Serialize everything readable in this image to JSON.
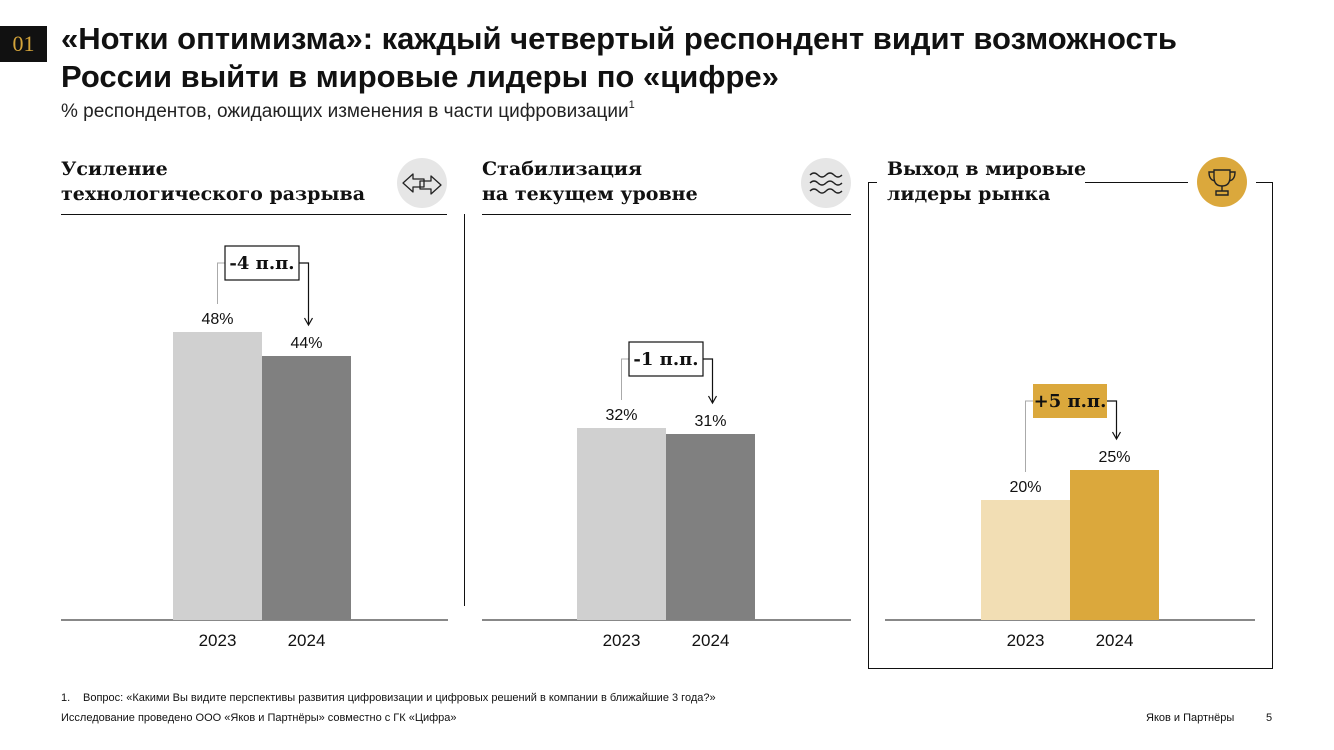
{
  "slide": {
    "badge": "01",
    "title": "«Нотки оптимизма»: каждый четвертый респондент видит возможность России выйти в мировые лидеры по «цифре»",
    "subtitle": "% респондентов, ожидающих изменения в части цифровизации",
    "subtitle_note": "1",
    "footnote_num": "1.",
    "footnote": "Вопрос: «Какими Вы видите перспективы развития цифровизации и цифровых решений в компании в ближайшие 3 года?»",
    "source": "Исследование проведено ООО «Яков и Партнёры» совместно с ГК «Цифра»",
    "brand": "Яков и Партнёры",
    "page": "5"
  },
  "panels": [
    {
      "title_line1": "Усиление",
      "title_line2": "технологического разрыва",
      "icon": "arrows-icon"
    },
    {
      "title_line1": "Стабилизация",
      "title_line2": "на текущем уровне",
      "icon": "waves-icon"
    },
    {
      "title_line1": "Выход в мировые",
      "title_line2": "лидеры рынка",
      "icon": "trophy-icon"
    }
  ],
  "colors": {
    "grey_light": "#d0d0d0",
    "grey_dark": "#808080",
    "gold_light": "#f2deb4",
    "gold": "#dba83c",
    "icon_bg": "#e6e6e6",
    "badge_text": "#d4a43a"
  },
  "chart_data": [
    {
      "type": "bar",
      "title": "Усиление технологического разрыва",
      "categories": [
        "2023",
        "2024"
      ],
      "values": [
        48,
        44
      ],
      "value_labels": [
        "48%",
        "44%"
      ],
      "delta_label": "-4 п.п.",
      "ylim": [
        0,
        100
      ],
      "colors": [
        "#d0d0d0",
        "#808080"
      ]
    },
    {
      "type": "bar",
      "title": "Стабилизация на текущем уровне",
      "categories": [
        "2023",
        "2024"
      ],
      "values": [
        32,
        31
      ],
      "value_labels": [
        "32%",
        "31%"
      ],
      "delta_label": "-1 п.п.",
      "ylim": [
        0,
        100
      ],
      "colors": [
        "#d0d0d0",
        "#808080"
      ]
    },
    {
      "type": "bar",
      "title": "Выход в мировые лидеры рынка",
      "categories": [
        "2023",
        "2024"
      ],
      "values": [
        20,
        25
      ],
      "value_labels": [
        "20%",
        "25%"
      ],
      "delta_label": "+5 п.п.",
      "ylim": [
        0,
        100
      ],
      "colors": [
        "#f2deb4",
        "#dba83c"
      ]
    }
  ]
}
